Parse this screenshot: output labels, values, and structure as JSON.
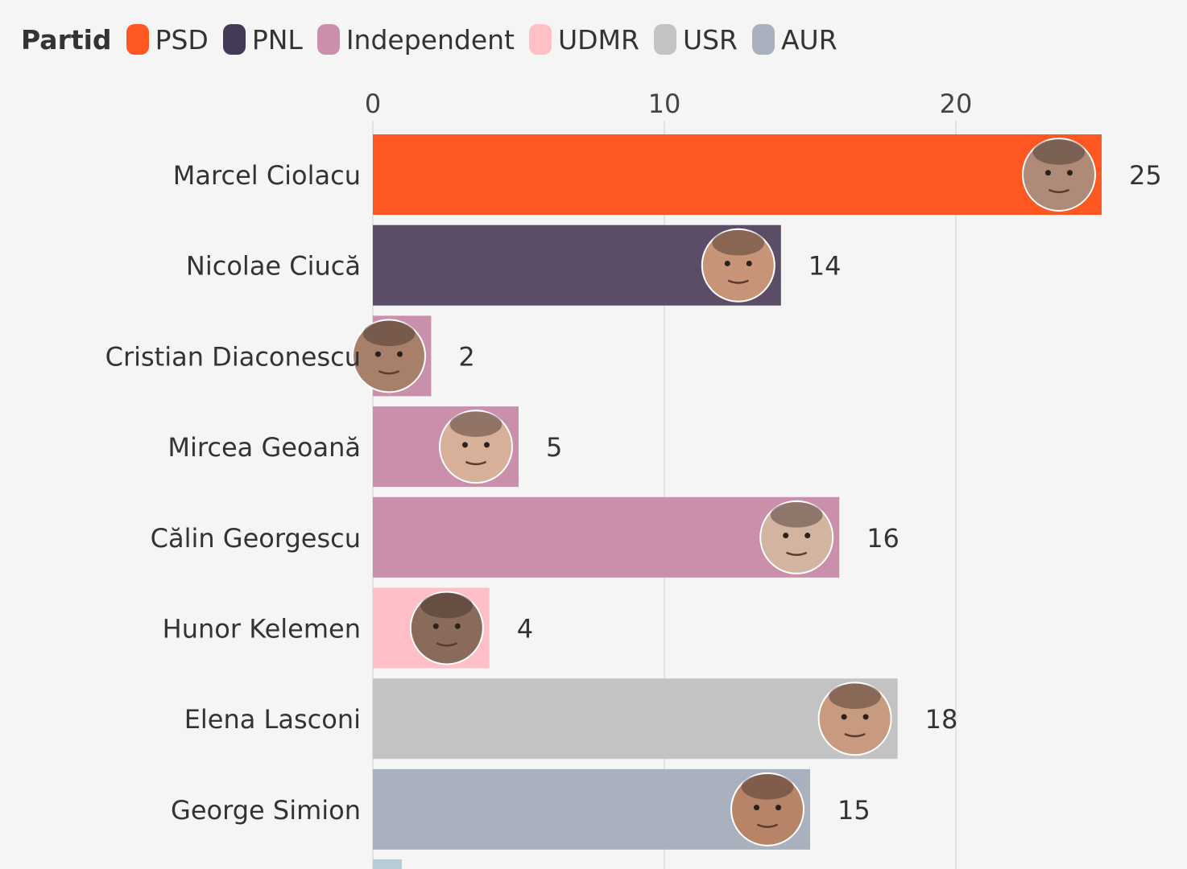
{
  "legend": {
    "title": "Partid",
    "items": [
      {
        "label": "PSD",
        "color": "#ff5722"
      },
      {
        "label": "PNL",
        "color": "#433a56"
      },
      {
        "label": "Independent",
        "color": "#c98fab"
      },
      {
        "label": "UDMR",
        "color": "#ffbfc6"
      },
      {
        "label": "USR",
        "color": "#c3c3c3"
      },
      {
        "label": "AUR",
        "color": "#a9b0be"
      }
    ]
  },
  "chart_data": {
    "type": "bar",
    "orientation": "horizontal",
    "xlim": [
      0,
      25
    ],
    "xticks": [
      0,
      10,
      20
    ],
    "axis_position": "top",
    "grid": true,
    "legend_position": "top-left",
    "categories": [
      "Marcel Ciolacu",
      "Nicolae Ciucă",
      "Cristian Diaconescu",
      "Mircea Geoană",
      "Călin Georgescu",
      "Hunor Kelemen",
      "Elena Lasconi",
      "George Simion"
    ],
    "values": [
      25,
      14,
      2,
      5,
      16,
      4,
      18,
      15
    ],
    "parties": [
      "PSD",
      "PNL",
      "Independent",
      "Independent",
      "Independent",
      "UDMR",
      "USR",
      "AUR"
    ],
    "bar_colors": [
      "#ff5722",
      "#5c4d66",
      "#c98fab",
      "#c98fab",
      "#c98fab",
      "#ffbfc6",
      "#c3c3c3",
      "#a9b0be"
    ],
    "photo_colors": [
      "#b08a78",
      "#c89478",
      "#a8806a",
      "#d8b09a",
      "#d2b4a0",
      "#8a6a5a",
      "#c89a80",
      "#b88468"
    ]
  }
}
